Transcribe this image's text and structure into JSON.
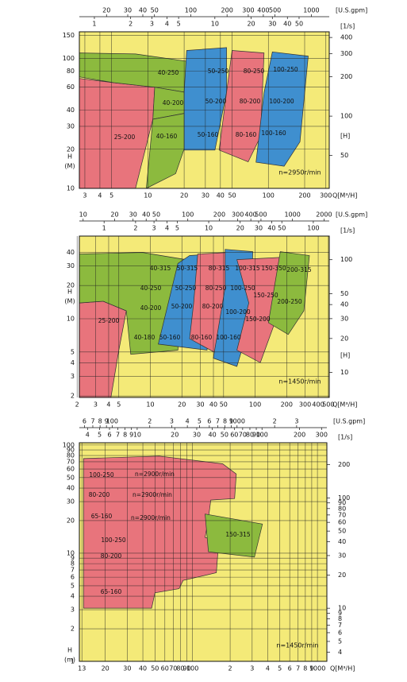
{
  "chart_data": [
    {
      "type": "pump-range",
      "log": true,
      "grid": true,
      "annotation": "n=2950r/min",
      "xlabel": "Q[M³/H]",
      "ylabel": "H",
      "yunit": "(M)",
      "x2label": "[U.S.gpm]",
      "x3label": "[1/s]",
      "y2label": "[H]",
      "xlim": [
        2.7,
        320
      ],
      "xticks": [
        3,
        4,
        5,
        10,
        20,
        30,
        40,
        50,
        100,
        200,
        300
      ],
      "x2lim": [
        11.9,
        1409
      ],
      "x2ticks": [
        20,
        30,
        40,
        50,
        100,
        200,
        300,
        400,
        500,
        1000
      ],
      "x3lim": [
        0.75,
        89
      ],
      "x3ticks": [
        1,
        2,
        3,
        4,
        5,
        10,
        20,
        30,
        40,
        50
      ],
      "ylim": [
        10,
        160
      ],
      "yticks": [
        10,
        20,
        30,
        40,
        60,
        80,
        100,
        150
      ],
      "y2lim": [
        28,
        442
      ],
      "y2ticks": [
        50,
        100,
        200,
        300,
        400
      ],
      "regions": [
        {
          "labels": [
            "25-200"
          ],
          "color": "#e8747c",
          "q": [
            2.7,
            5.2,
            11.4,
            11,
            7.9,
            2.7
          ],
          "h": [
            70,
            65,
            60,
            34,
            10,
            10
          ]
        },
        {
          "labels": [
            "40-250"
          ],
          "color": "#8cba3e",
          "q": [
            2.7,
            7.9,
            21,
            20,
            11.4,
            5.2,
            2.7
          ],
          "h": [
            110,
            108,
            95,
            55,
            60,
            65,
            72
          ]
        },
        {
          "labels": [
            "40-200"
          ],
          "color": "#8cba3e",
          "q": [
            11.4,
            20,
            21,
            11
          ],
          "h": [
            60,
            55,
            38,
            34
          ]
        },
        {
          "labels": [
            "40-160"
          ],
          "color": "#8cba3e",
          "q": [
            11,
            21,
            22,
            17,
            9.7
          ],
          "h": [
            34,
            38,
            26,
            13,
            10
          ]
        },
        {
          "labels": [
            "50-250",
            "50-200",
            "50-160"
          ],
          "color": "#3f8fcf",
          "q": [
            21,
            45,
            45,
            36,
            20,
            20
          ],
          "h": [
            115,
            121,
            55,
            19.7,
            19.7,
            55
          ]
        },
        {
          "labels": [
            "80-250",
            "80-200",
            "80-160"
          ],
          "color": "#e8747c",
          "q": [
            50,
            92,
            86,
            68,
            39,
            45
          ],
          "h": [
            115,
            110,
            25,
            16,
            19.7,
            55
          ]
        },
        {
          "labels": [
            "100-250",
            "100-200",
            "100-160"
          ],
          "color": "#3f8fcf",
          "q": [
            108,
            214,
            183,
            135,
            79,
            92
          ],
          "h": [
            112,
            104,
            22.8,
            14.8,
            15.9,
            54.5
          ]
        }
      ]
    },
    {
      "type": "pump-range",
      "log": true,
      "grid": true,
      "annotation": "n=1450r/min",
      "xlabel": "Q[M³/H]",
      "ylabel": "H",
      "yunit": "(M)",
      "x2label": "[U.S.gpm]",
      "x3label": "[1/s]",
      "y2label": "[H]",
      "xlim": [
        2.1,
        510
      ],
      "xticks": [
        2,
        3,
        4,
        5,
        10,
        20,
        30,
        40,
        50,
        100,
        200,
        300,
        400,
        500
      ],
      "x2lim": [
        9.2,
        2245
      ],
      "x2ticks": [
        10,
        20,
        30,
        40,
        50,
        100,
        200,
        300,
        400,
        500,
        1000,
        2000
      ],
      "x3lim": [
        0.58,
        142
      ],
      "x3ticks": [
        1,
        2,
        3,
        4,
        5,
        10,
        20,
        30,
        40,
        50,
        100
      ],
      "ylim": [
        1.94,
        56
      ],
      "yticks": [
        2,
        3,
        4,
        5,
        10,
        20,
        30,
        40
      ],
      "y2lim": [
        6,
        162
      ],
      "y2ticks": [
        10,
        20,
        30,
        40,
        50,
        100
      ],
      "regions": [
        {
          "labels": [
            "25-200"
          ],
          "color": "#e8747c",
          "q": [
            2.1,
            3.55,
            5.9,
            5.0,
            4.2,
            2.1
          ],
          "h": [
            13.9,
            14.4,
            11.8,
            5.2,
            1.94,
            1.94
          ]
        },
        {
          "labels": [
            "40-315",
            "40-250",
            "40-200",
            "40-180"
          ],
          "color": "#8cba3e",
          "q": [
            2.1,
            8.4,
            21.8,
            18.3,
            6.5,
            5.9,
            3.55,
            2.1
          ],
          "h": [
            38.5,
            39.8,
            34.3,
            5.2,
            4.77,
            11.8,
            14.4,
            13.9
          ]
        },
        {
          "labels": [
            "50-315",
            "50-250",
            "50-200",
            "50-160"
          ],
          "color": "#3f8fcf",
          "q": [
            23.7,
            39.9,
            34.8,
            11.9,
            18.3
          ],
          "h": [
            37.3,
            38.5,
            5.2,
            5.9,
            31.6
          ]
        },
        {
          "labels": [
            "80-315",
            "80-250",
            "80-200",
            "80-160"
          ],
          "color": "#e8747c",
          "q": [
            28.3,
            56.5,
            67,
            51.8,
            23.7,
            25.9
          ],
          "h": [
            38.5,
            39.8,
            19.3,
            4.4,
            6.6,
            13.9
          ]
        },
        {
          "labels": [
            "100-315",
            "100-250",
            "100-200",
            "100-160"
          ],
          "color": "#3f8fcf",
          "q": [
            51.8,
            94.9,
            91.6,
            67,
            39.9,
            51.8
          ],
          "h": [
            42.5,
            40.5,
            10,
            3.7,
            4.4,
            19.3
          ]
        },
        {
          "labels": [
            "150-350",
            "150-250",
            "150-200"
          ],
          "color": "#e8747c",
          "q": [
            67,
            196,
            159,
            112,
            67,
            87
          ],
          "h": [
            34.3,
            36.1,
            10,
            4.0,
            5.2,
            13.9
          ]
        },
        {
          "labels": [
            "200-315",
            "200-250"
          ],
          "color": "#8cba3e",
          "q": [
            174,
            330,
            292,
            207,
            134
          ],
          "h": [
            40.5,
            37.3,
            11.8,
            7.2,
            9.2
          ]
        }
      ]
    },
    {
      "type": "pump-range",
      "log": true,
      "grid": true,
      "annotation": "n=1450r/min",
      "xlabel": "Q[M³/H]",
      "ylabel": "H",
      "yunit": "(m)",
      "x2label": "[U.S.gpm]",
      "x3label": "[1/s]",
      "xlim": [
        12.4,
        1190
      ],
      "xticks": [
        13,
        20,
        30,
        40,
        50,
        60,
        70,
        80,
        90,
        100,
        {
          "value": 200,
          "label": "2"
        },
        {
          "value": 300,
          "label": "3"
        },
        {
          "value": 400,
          "label": "4"
        },
        {
          "value": 500,
          "label": "5"
        },
        {
          "value": 600,
          "label": "6"
        },
        {
          "value": 700,
          "label": "7"
        },
        {
          "value": 800,
          "label": "8"
        },
        {
          "value": 900,
          "label": "9"
        },
        1000
      ],
      "x2lim": [
        54.6,
        5240
      ],
      "x2ticks": [
        {
          "value": 60,
          "label": "6"
        },
        {
          "value": 70,
          "label": "7"
        },
        {
          "value": 80,
          "label": "8"
        },
        {
          "value": 90,
          "label": "9"
        },
        100,
        {
          "value": 200,
          "label": "2"
        },
        {
          "value": 300,
          "label": "3"
        },
        {
          "value": 400,
          "label": "4"
        },
        {
          "value": 500,
          "label": "5"
        },
        {
          "value": 600,
          "label": "6"
        },
        {
          "value": 700,
          "label": "7"
        },
        {
          "value": 800,
          "label": "8"
        },
        {
          "value": 900,
          "label": "9"
        },
        1000,
        {
          "value": 2000,
          "label": "2"
        },
        {
          "value": 3000,
          "label": "3"
        }
      ],
      "x3lim": [
        3.44,
        331
      ],
      "x3ticks": [
        4,
        5,
        6,
        7,
        8,
        9,
        10,
        20,
        30,
        40,
        50,
        60,
        70,
        80,
        90,
        100,
        200,
        300
      ],
      "ylim": [
        1,
        105
      ],
      "yticks": [
        1,
        2,
        3,
        4,
        5,
        6,
        7,
        8,
        9,
        10,
        20,
        30,
        40,
        50,
        60,
        70,
        80,
        90,
        100
      ],
      "y2lim": [
        3.3,
        316
      ],
      "y2ticks": [
        4,
        5,
        6,
        7,
        8,
        9,
        10,
        20,
        30,
        40,
        50,
        60,
        70,
        80,
        90,
        100,
        200
      ],
      "regions": [
        {
          "labels": [
            "100-250",
            "n=2900r/min",
            "80-200",
            "n=2900r/min",
            "65-160",
            "n=2900r/min",
            "100-250",
            "80-200",
            "65-160"
          ],
          "color": "#e8747c",
          "q": [
            13.4,
            54,
            174,
            224,
            217,
            140,
            134,
            126,
            162,
            155,
            84,
            78,
            50,
            47,
            13.4
          ],
          "h": [
            75,
            79,
            67,
            54,
            32,
            31,
            21,
            14,
            12.9,
            6.6,
            5.6,
            4.7,
            4.3,
            3.1,
            3.1
          ]
        },
        {
          "labels": [
            "150-315"
          ],
          "color": "#8cba3e",
          "q": [
            126,
            363,
            313,
            134
          ],
          "h": [
            23,
            18.6,
            9.2,
            10.3
          ]
        }
      ]
    }
  ]
}
